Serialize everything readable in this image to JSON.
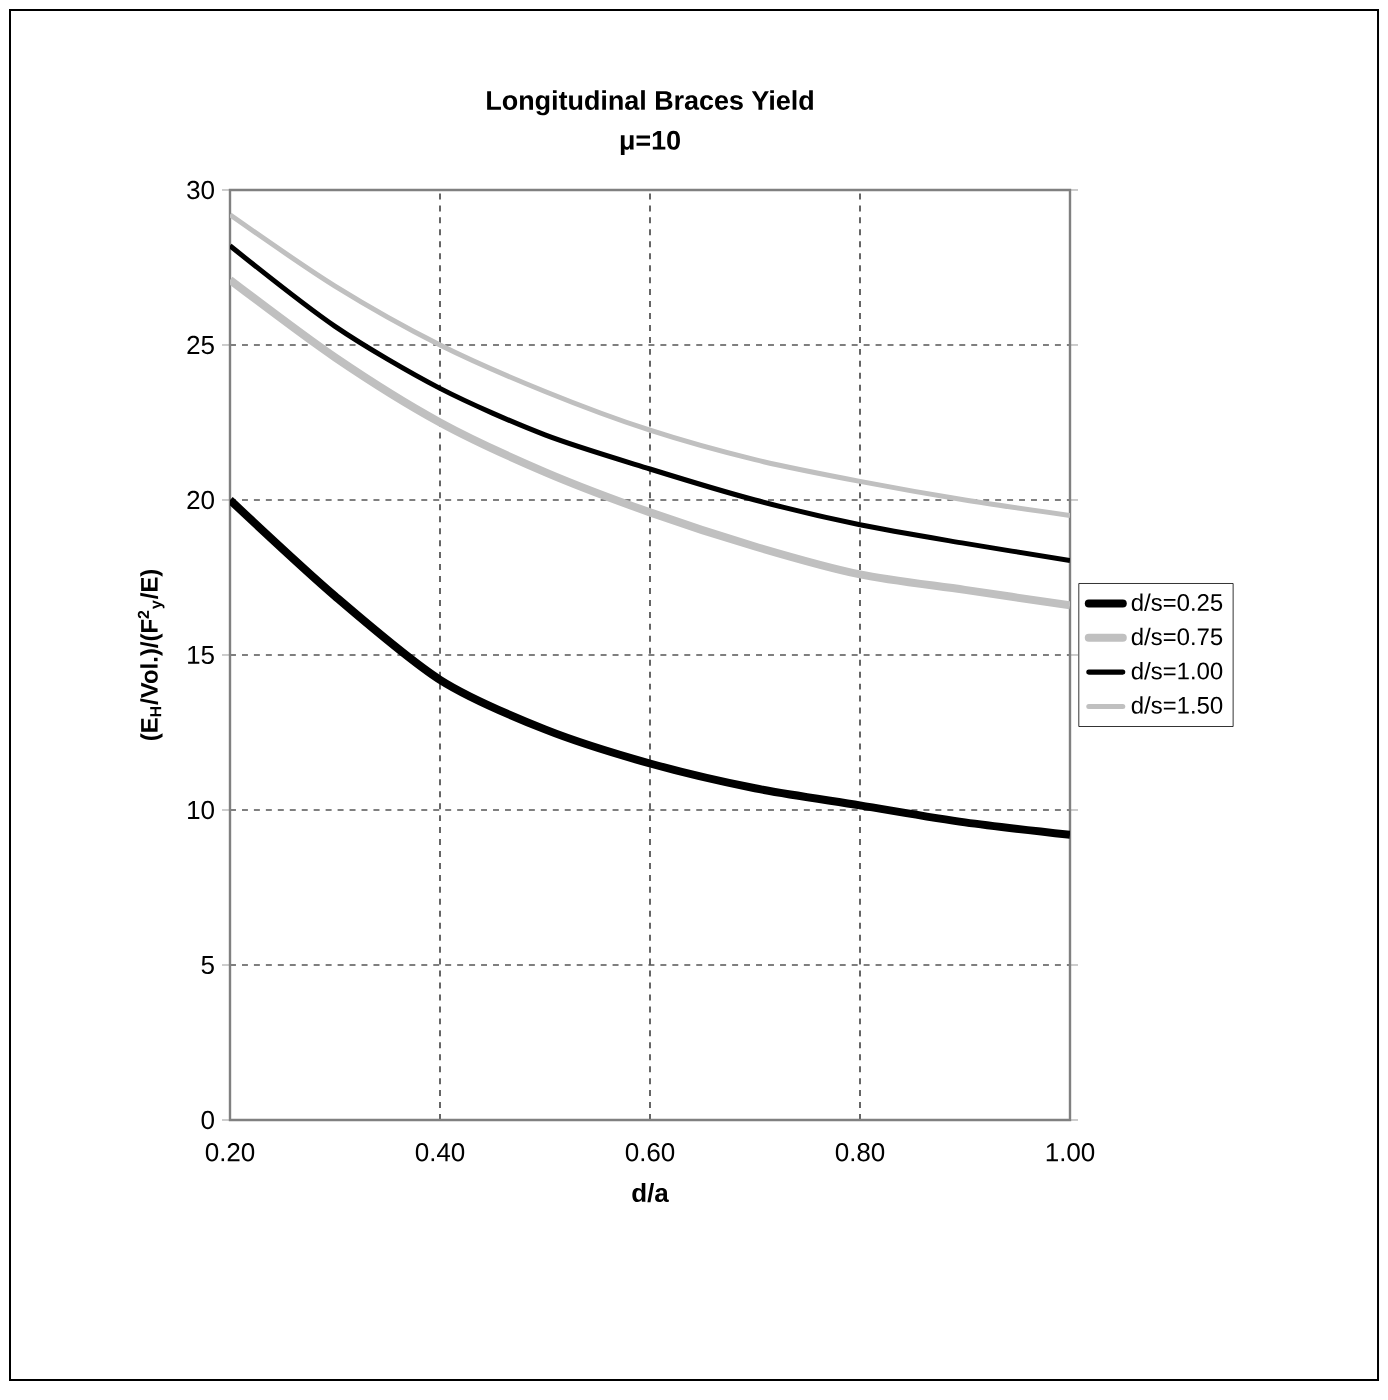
{
  "chart_data": {
    "type": "line",
    "title": "Longitudinal Braces Yield",
    "subtitle": "μ=10",
    "xlabel": "d/a",
    "ylabel": "(E$_{H}$/Vol.)/(F$^{2}$$_{y}$/E)",
    "x": [
      0.2,
      0.3,
      0.4,
      0.5,
      0.6,
      0.7,
      0.8,
      0.9,
      1.0
    ],
    "series": [
      {
        "name": "d/s=0.25",
        "color": "#000000",
        "values": [
          20.0,
          16.9,
          14.2,
          12.6,
          11.5,
          10.7,
          10.15,
          9.6,
          9.2
        ]
      },
      {
        "name": "d/s=0.75",
        "color": "#c0c0c0",
        "values": [
          27.1,
          24.6,
          22.5,
          20.9,
          19.6,
          18.5,
          17.6,
          17.1,
          16.6
        ]
      },
      {
        "name": "d/s=1.00",
        "color": "#000000",
        "values": [
          28.2,
          25.6,
          23.6,
          22.1,
          21.0,
          20.0,
          19.2,
          18.6,
          18.05
        ]
      },
      {
        "name": "d/s=1.50",
        "color": "#c0c0c0",
        "values": [
          29.2,
          26.9,
          25.0,
          23.5,
          22.25,
          21.3,
          20.6,
          20.0,
          19.5
        ]
      }
    ],
    "xlim": [
      0.2,
      1.0
    ],
    "xticks": [
      {
        "value": 0.2,
        "label": "0.20"
      },
      {
        "value": 0.4,
        "label": "0.40"
      },
      {
        "value": 0.6,
        "label": "0.60"
      },
      {
        "value": 0.8,
        "label": "0.80"
      },
      {
        "value": 1.0,
        "label": "1.00"
      }
    ],
    "ylim": [
      0,
      30
    ],
    "yticks": [
      0,
      5,
      10,
      15,
      20,
      25,
      30
    ],
    "grid": true,
    "legend": "right",
    "marker": "none",
    "line_style": "solid"
  }
}
